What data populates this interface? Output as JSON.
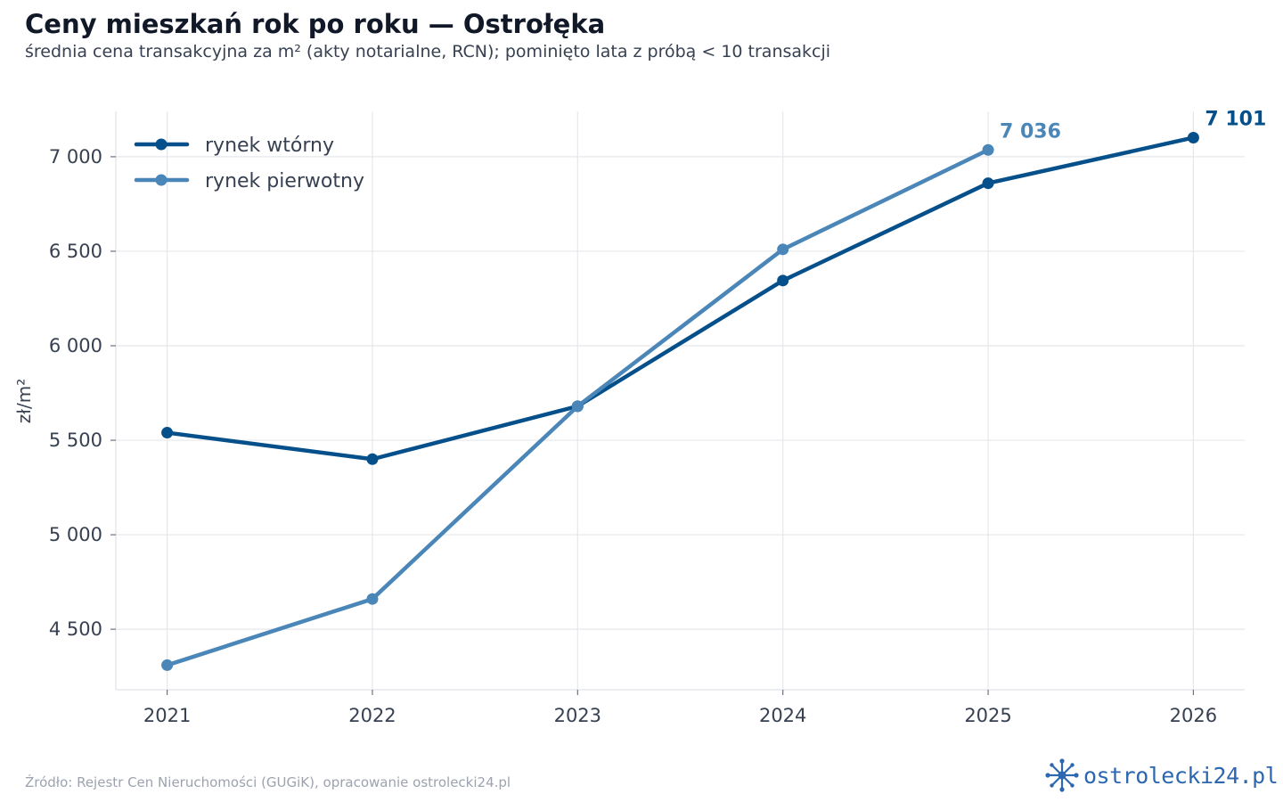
{
  "title": "Ceny mieszkań rok po roku — Ostrołęka",
  "subtitle": "średnia cena transakcyjna za m² (akty notarialne, RCN); pominięto lata z próbą < 10 transakcji",
  "source": "Źródło: Rejestr Cen Nieruchomości (GUGiK), opracowanie ostrolecki24.pl",
  "brand": {
    "text": "ostrolecki24.pl",
    "icon": "snowflake-folk-icon",
    "color": "#2c67b0"
  },
  "chart_data": {
    "type": "line",
    "title": "Ceny mieszkań rok po roku — Ostrołęka",
    "subtitle": "średnia cena transakcyjna za m² (akty notarialne, RCN); pominięto lata z próbą < 10 transakcji",
    "xlabel": "",
    "ylabel": "zł/m²",
    "x": [
      2021,
      2022,
      2023,
      2024,
      2025,
      2026
    ],
    "x_tick_labels": [
      "2021",
      "2022",
      "2023",
      "2024",
      "2025",
      "2026"
    ],
    "xlim": [
      2020.75,
      2026.25
    ],
    "ylim": [
      4180,
      7240
    ],
    "y_ticks": [
      4500,
      5000,
      5500,
      6000,
      6500,
      7000
    ],
    "y_tick_labels": [
      "4 500",
      "5 000",
      "5 500",
      "6 000",
      "6 500",
      "7 000"
    ],
    "grid": true,
    "legend_position": "top-left",
    "series": [
      {
        "name": "rynek wtórny",
        "color": "#05508a",
        "x": [
          2021,
          2022,
          2023,
          2024,
          2025,
          2026
        ],
        "values": [
          5540,
          5400,
          5680,
          6345,
          6860,
          7101
        ],
        "end_label": "7 101"
      },
      {
        "name": "rynek pierwotny",
        "color": "#4a86b8",
        "x": [
          2021,
          2022,
          2023,
          2024,
          2025
        ],
        "values": [
          4310,
          4660,
          5680,
          6510,
          7036
        ],
        "end_label": "7 036"
      }
    ]
  }
}
